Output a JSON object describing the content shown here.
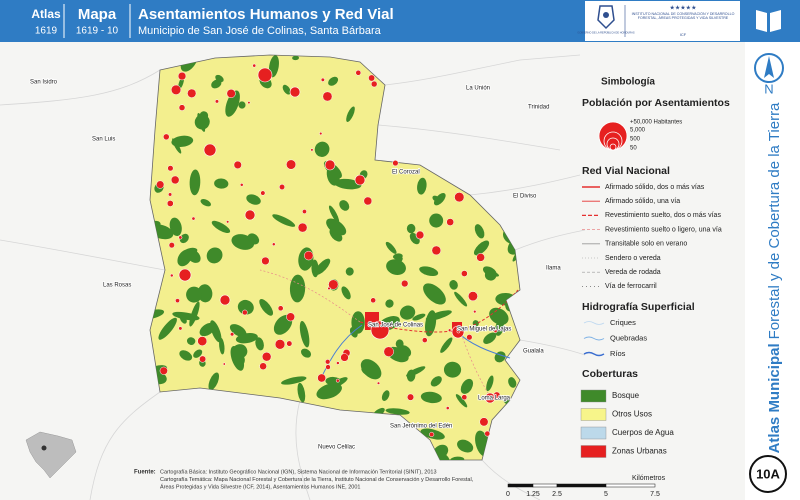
{
  "header": {
    "atlas_label": "Atlas",
    "atlas_number": "1619",
    "map_label": "Mapa",
    "map_number": "1619 - 10",
    "title": "Asentamientos Humanos y Red Vial",
    "subtitle": "Municipio de San José de Colinas, Santa Bárbara"
  },
  "logos": {
    "government": "GOBIERNO DE LA REPÚBLICA DE HONDURAS",
    "institute": "INSTITUTO NACIONAL DE CONSERVACIÓN Y DESARROLLO FORESTAL, ÁREAS PROTEGIDAS Y VIDA SILVESTRE",
    "institute_acronym": "ICF"
  },
  "side": {
    "north": "N",
    "atlas_bold": "Atlas Municipal",
    "atlas_rest": "Forestal y de Cobertura de la Tierra",
    "badge": "10A"
  },
  "places": [
    {
      "label": "San Isidro"
    },
    {
      "label": "La Unión"
    },
    {
      "label": "Trinidad"
    },
    {
      "label": "San Luis"
    },
    {
      "label": "El Corozal"
    },
    {
      "label": "El Diviso"
    },
    {
      "label": "Ilama"
    },
    {
      "label": "Las Rosas"
    },
    {
      "label": "San José de Colinas"
    },
    {
      "label": "San Miguel de Lajas"
    },
    {
      "label": "Gualala"
    },
    {
      "label": "Loma Larga"
    },
    {
      "label": "San Jerónimo del Edén"
    },
    {
      "label": "Nuevo Celilac"
    }
  ],
  "legend": {
    "title": "Simbología",
    "population": {
      "title": "Población por Asentamientos",
      "items": [
        "+50,000 Habitantes",
        "5,000",
        "500",
        "50"
      ]
    },
    "roads": {
      "title": "Red Vial Nacional",
      "items": [
        "Afirmado sólido, dos o más vías",
        "Afirmado sólido, una vía",
        "Revestimiento suelto, dos o más vías",
        "Revestimiento suelto o ligero, una vía",
        "Transitable solo en verano",
        "Sendero o vereda",
        "Vereda de rodada",
        "Vía de ferrocarril"
      ]
    },
    "hydrography": {
      "title": "Hidrografía Superficial",
      "items": [
        "Criques",
        "Quebradas",
        "Ríos"
      ]
    },
    "cover": {
      "title": "Coberturas",
      "items": [
        "Bosque",
        "Otros Usos",
        "Cuerpos de Agua",
        "Zonas Urbanas"
      ]
    }
  },
  "scale": {
    "ticks": [
      "0",
      "1.25",
      "2.5",
      "5",
      "7.5"
    ],
    "unit": "Kilómetros"
  },
  "source": {
    "label": "Fuente:",
    "lines": [
      "Cartografía Básica: Instituto Geográfico Nacional (IGN), Sistema Nacional de Información Territorial (SINIT), 2013",
      "Cartografía Temática: Mapa Nacional Forestal y Cobertura de la Tierra, Instituto Nacional de Conservación y Desarrollo Forestal,",
      "Áreas Protegidas y Vida Silvestre (ICF, 2014), Asentamientos Humanos INE, 2001"
    ]
  }
}
